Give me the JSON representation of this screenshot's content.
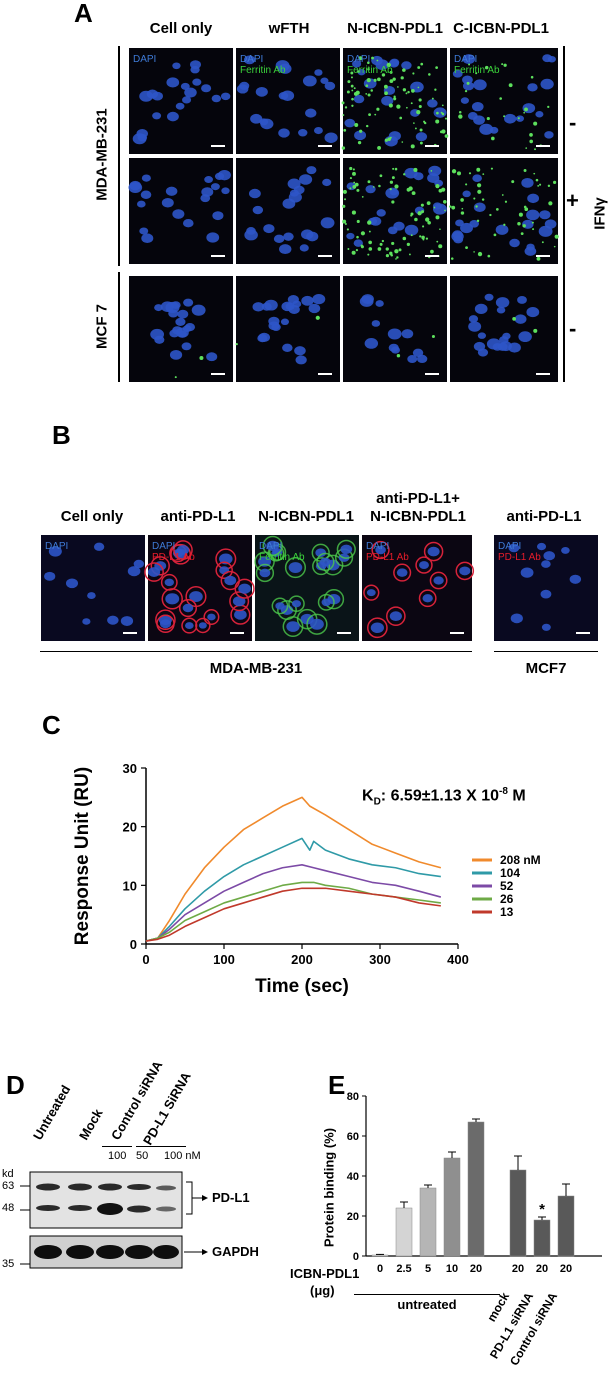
{
  "panelA": {
    "letter": "A",
    "columns": [
      "Cell only",
      "wFTH",
      "N-ICBN-PDL1",
      "C-ICBN-PDL1"
    ],
    "rows": [
      "MDA-MB-231",
      "MCF 7"
    ],
    "treatment": "IFNγ",
    "signs": [
      "-",
      "+",
      "-"
    ],
    "tile_labels": {
      "dapi": "DAPI",
      "ferritin": "Ferritin Ab"
    }
  },
  "panelB": {
    "letter": "B",
    "columns": [
      "Cell only",
      "anti-PD-L1",
      "N-ICBN-PDL1",
      "anti-PD-L1+",
      "N-ICBN-PDL1",
      "anti-PD-L1"
    ],
    "groups": [
      "MDA-MB-231",
      "MCF7"
    ],
    "tile_labels": {
      "dapi": "DAPI",
      "pdl1": "PD-L1 Ab",
      "ferritin": "Ferritin Ab"
    }
  },
  "panelC": {
    "letter": "C",
    "kd_prefix": "K",
    "kd_sub": "D",
    "kd_text": ": 6.59±1.13 X 10",
    "kd_exp": "-8",
    "kd_unit": " M"
  },
  "panelD": {
    "letter": "D",
    "lanes": [
      "Untreated",
      "Mock",
      "Control siRNA",
      "PD-L1 SiRNA"
    ],
    "conc": [
      "100",
      "50",
      "100 nM"
    ],
    "kd_label": "kd",
    "mw": [
      "63",
      "48",
      "35"
    ],
    "bands": [
      "PD-L1",
      "GAPDH"
    ]
  },
  "panelE": {
    "letter": "E",
    "ylabel": "Protein binding (%)",
    "xlabel_line1": "ICBN-PDL1",
    "xlabel_line2": "(μg)",
    "group_untreated": "untreated",
    "sig_mark": "*",
    "x_labels": [
      "0",
      "2.5",
      "5",
      "10",
      "20",
      "20",
      "20",
      "20"
    ],
    "rot_labels": [
      "mock",
      "PD-L1 siRNA",
      "Control siRNA"
    ]
  },
  "chart_data": [
    {
      "type": "line",
      "title": "",
      "xlabel": "Time (sec)",
      "ylabel": "Response Unit (RU)",
      "xlim": [
        0,
        400
      ],
      "ylim": [
        0,
        30
      ],
      "xticks": [
        0,
        100,
        200,
        300,
        400
      ],
      "yticks": [
        0,
        10,
        20,
        30
      ],
      "legend_position": "right",
      "series": [
        {
          "name": "208 nM",
          "color": "#f08a2c",
          "x": [
            0,
            15,
            30,
            50,
            75,
            100,
            125,
            150,
            175,
            200,
            210,
            230,
            260,
            290,
            320,
            350,
            378
          ],
          "y": [
            0.5,
            1,
            4,
            8.5,
            13,
            16.5,
            19.5,
            21.5,
            23.5,
            25,
            23.5,
            22,
            19.5,
            17,
            15.5,
            14,
            13
          ]
        },
        {
          "name": "104",
          "color": "#2f9aa7",
          "x": [
            0,
            15,
            30,
            50,
            75,
            100,
            125,
            150,
            175,
            200,
            210,
            215,
            230,
            260,
            290,
            320,
            350,
            378
          ],
          "y": [
            0.5,
            1,
            3,
            6,
            9,
            11.5,
            13.5,
            15,
            16.5,
            18,
            16,
            17.5,
            16,
            14.5,
            13.5,
            13,
            12,
            11.5
          ]
        },
        {
          "name": "52",
          "color": "#7c4aa6",
          "x": [
            0,
            15,
            30,
            50,
            75,
            100,
            125,
            150,
            175,
            200,
            215,
            230,
            260,
            290,
            320,
            350,
            378
          ],
          "y": [
            0.5,
            1,
            2.5,
            5,
            7,
            9,
            10.5,
            12,
            13,
            13.5,
            13,
            12.5,
            11.5,
            10.5,
            10,
            9,
            8
          ]
        },
        {
          "name": "26",
          "color": "#6eaa46",
          "x": [
            0,
            15,
            30,
            50,
            75,
            100,
            125,
            150,
            175,
            200,
            215,
            230,
            260,
            290,
            320,
            350,
            378
          ],
          "y": [
            0.5,
            1,
            2,
            4,
            5.5,
            7,
            8,
            9,
            10,
            10.5,
            10.5,
            10,
            9.5,
            8.5,
            8,
            7.5,
            7
          ]
        },
        {
          "name": "13",
          "color": "#c0392b",
          "x": [
            0,
            15,
            30,
            50,
            75,
            100,
            125,
            150,
            175,
            200,
            215,
            230,
            260,
            290,
            320,
            350,
            378
          ],
          "y": [
            0.5,
            0.8,
            1.5,
            3,
            4.5,
            6,
            7,
            8,
            9,
            9.5,
            9.5,
            9.5,
            9,
            8.5,
            8,
            7,
            6.5
          ]
        }
      ]
    },
    {
      "type": "bar",
      "title": "",
      "xlabel": "ICBN-PDL1 (μg)",
      "ylabel": "Protein binding (%)",
      "ylim": [
        0,
        80
      ],
      "yticks": [
        0,
        20,
        40,
        60,
        80
      ],
      "categories": [
        "0",
        "2.5",
        "5",
        "10",
        "20",
        "20 mock",
        "20 PD-L1 siRNA",
        "20 Control siRNA"
      ],
      "values": [
        0.5,
        24,
        34,
        49,
        67,
        43,
        18,
        30
      ],
      "errors": [
        0.3,
        3,
        1.5,
        3,
        1.5,
        7,
        1.5,
        6
      ],
      "colors": [
        "#efefef",
        "#d4d4d4",
        "#b5b5b5",
        "#8f8f8f",
        "#6b6b6b",
        "#595959",
        "#595959",
        "#595959"
      ]
    }
  ]
}
